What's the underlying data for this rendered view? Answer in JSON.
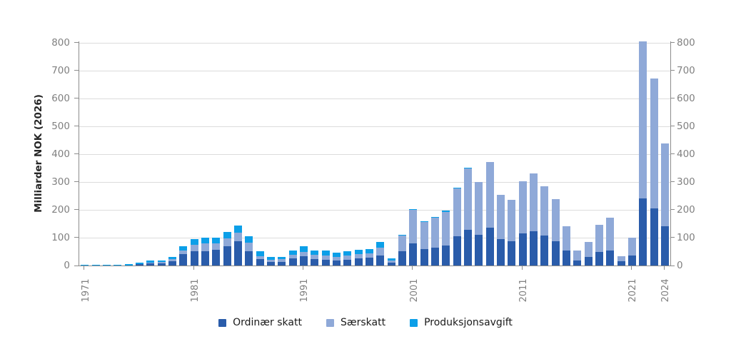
{
  "chart_data": {
    "type": "bar",
    "stacked": true,
    "title": "",
    "xlabel": "",
    "ylabel": "Milliarder NOK (2026)",
    "ylim": [
      0,
      800
    ],
    "yticks": [
      0,
      100,
      200,
      300,
      400,
      500,
      600,
      700,
      800
    ],
    "grid": true,
    "legend_position": "bottom",
    "axis_color": "#8c8c8c",
    "grid_color": "#dcdcdc",
    "tick_label_color": "#808080",
    "x_tick_labels_shown": [
      "1971",
      "1981",
      "1991",
      "2001",
      "2011",
      "2021",
      "2024"
    ],
    "categories": [
      1971,
      1972,
      1973,
      1974,
      1975,
      1976,
      1977,
      1978,
      1979,
      1980,
      1981,
      1982,
      1983,
      1984,
      1985,
      1986,
      1987,
      1988,
      1989,
      1990,
      1991,
      1992,
      1993,
      1994,
      1995,
      1996,
      1997,
      1998,
      1999,
      2000,
      2001,
      2002,
      2003,
      2004,
      2005,
      2006,
      2007,
      2008,
      2009,
      2010,
      2011,
      2012,
      2013,
      2014,
      2015,
      2016,
      2017,
      2018,
      2019,
      2020,
      2021,
      2022,
      2023,
      2024
    ],
    "series": [
      {
        "name": "Ordinær skatt",
        "color": "#2a5caa",
        "values": [
          0,
          0,
          0,
          0,
          1,
          5,
          9,
          9,
          15,
          42,
          50,
          52,
          56,
          68,
          88,
          50,
          22,
          13,
          14,
          25,
          33,
          24,
          21,
          19,
          20,
          26,
          29,
          36,
          10,
          52,
          79,
          58,
          64,
          72,
          104,
          128,
          111,
          136,
          94,
          87,
          115,
          122,
          107,
          88,
          53,
          19,
          32,
          49,
          54,
          15,
          37,
          240,
          205,
          140
        ]
      },
      {
        "name": "Særskatt",
        "color": "#8fa9d8",
        "values": [
          0,
          0,
          0,
          0,
          0,
          0,
          2,
          3,
          7,
          13,
          24,
          27,
          24,
          30,
          30,
          32,
          11,
          8,
          10,
          14,
          16,
          14,
          15,
          13,
          15,
          15,
          15,
          28,
          9,
          55,
          120,
          99,
          108,
          121,
          172,
          220,
          189,
          235,
          160,
          149,
          187,
          208,
          178,
          150,
          88,
          34,
          52,
          98,
          118,
          18,
          64,
          563,
          467,
          297
        ]
      },
      {
        "name": "Produksjonsavgift",
        "color": "#0c9fe8",
        "values": [
          2,
          2,
          3,
          3,
          3,
          5,
          6,
          6,
          8,
          13,
          20,
          20,
          21,
          23,
          26,
          22,
          18,
          9,
          8,
          15,
          20,
          17,
          17,
          15,
          16,
          16,
          16,
          20,
          7,
          4,
          3,
          3,
          3,
          3,
          2,
          2,
          0,
          0,
          0,
          0,
          0,
          0,
          0,
          0,
          0,
          0,
          0,
          0,
          0,
          0,
          0,
          0,
          0,
          0
        ]
      }
    ]
  }
}
